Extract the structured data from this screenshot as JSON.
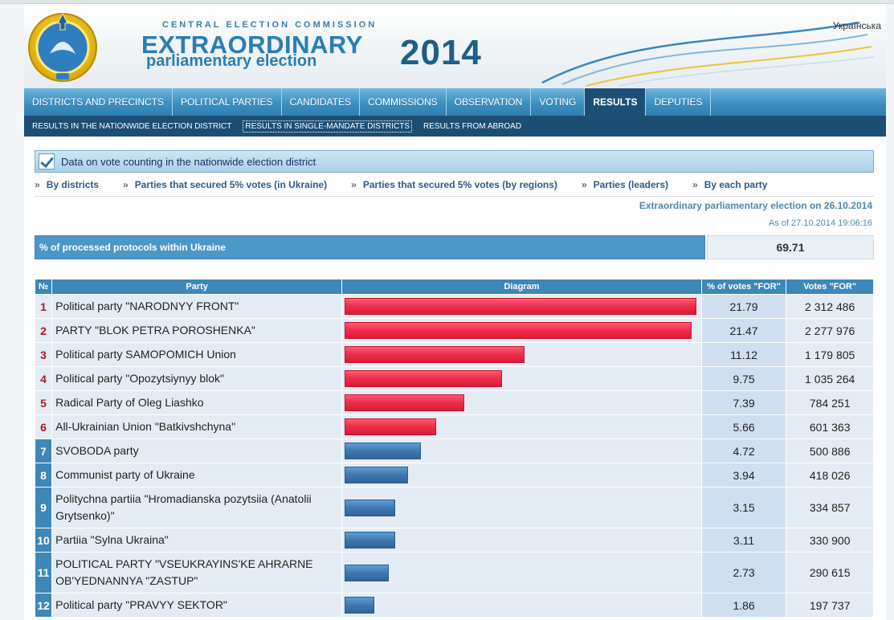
{
  "header": {
    "commission": "CENTRAL ELECTION COMMISSION",
    "title_line1": "EXTRAORDINARY",
    "title_line2": "parliamentary election",
    "year": "2014",
    "language_link": "Українська"
  },
  "main_nav": [
    {
      "label": "DISTRICTS AND PRECINCTS",
      "active": false
    },
    {
      "label": "POLITICAL PARTIES",
      "active": false
    },
    {
      "label": "CANDIDATES",
      "active": false
    },
    {
      "label": "COMMISSIONS",
      "active": false
    },
    {
      "label": "OBSERVATION",
      "active": false
    },
    {
      "label": "VOTING",
      "active": false
    },
    {
      "label": "RESULTS",
      "active": true
    },
    {
      "label": "DEPUTIES",
      "active": false
    }
  ],
  "sub_nav": [
    {
      "label": "RESULTS IN THE NATIONWIDE ELECTION DISTRICT",
      "active": false
    },
    {
      "label": "RESULTS IN SINGLE-MANDATE DISTRICTS",
      "active": true
    },
    {
      "label": "RESULTS FROM ABROAD",
      "active": false
    }
  ],
  "section": {
    "title": "Data on vote counting in the nationwide election district"
  },
  "links": [
    {
      "label": "By districts"
    },
    {
      "label": "Parties that secured 5% votes (in Ukraine)"
    },
    {
      "label": "Parties that secured 5% votes (by regions)"
    },
    {
      "label": "Parties (leaders)"
    },
    {
      "label": "By each party"
    }
  ],
  "link_marker": "»",
  "election_line": "Extraordinary parliamentary election on 26.10.2014",
  "as_of": "As of 27.10.2014 19:06:16",
  "processed": {
    "label": "% of processed protocols within Ukraine",
    "value": "69.71"
  },
  "table": {
    "headers": [
      "№",
      "Party",
      "Diagram",
      "% of votes \"FOR\"",
      "Votes \"FOR\""
    ],
    "rows": [
      {
        "no": "1",
        "party": "Political party \"NARODNYY FRONT\"",
        "pct": "21.79",
        "votes": "2 312 486",
        "threshold": true
      },
      {
        "no": "2",
        "party": "PARTY \"BLOK PETRA POROSHENKA\"",
        "pct": "21.47",
        "votes": "2 277 976",
        "threshold": true
      },
      {
        "no": "3",
        "party": "Political party SAMOPOMICH Union",
        "pct": "11.12",
        "votes": "1 179 805",
        "threshold": true
      },
      {
        "no": "4",
        "party": "Political party \"Opozytsiynyy blok\"",
        "pct": "9.75",
        "votes": "1 035 264",
        "threshold": true
      },
      {
        "no": "5",
        "party": "Radical Party of Oleg Liashko",
        "pct": "7.39",
        "votes": "784 251",
        "threshold": true
      },
      {
        "no": "6",
        "party": "All-Ukrainian Union \"Batkivshchyna\"",
        "pct": "5.66",
        "votes": "601 363",
        "threshold": true
      },
      {
        "no": "7",
        "party": "SVOBODA party",
        "pct": "4.72",
        "votes": "500 886",
        "threshold": false
      },
      {
        "no": "8",
        "party": "Communist party of Ukraine",
        "pct": "3.94",
        "votes": "418 026",
        "threshold": false
      },
      {
        "no": "9",
        "party": "Politychna partiia \"Hromadianska pozytsiia (Anatolii Grytsenko)\"",
        "pct": "3.15",
        "votes": "334 857",
        "threshold": false
      },
      {
        "no": "10",
        "party": "Partiia \"Sylna Ukraina\"",
        "pct": "3.11",
        "votes": "330 900",
        "threshold": false
      },
      {
        "no": "11",
        "party": "POLITICAL PARTY \"VSEUKRAYINS'KE AHRARNE OB'YEDNANNYA \"ZASTUP\"",
        "pct": "2.73",
        "votes": "290 615",
        "threshold": false
      },
      {
        "no": "12",
        "party": "Political party \"PRAVYY SEKTOR\"",
        "pct": "1.86",
        "votes": "197 737",
        "threshold": false
      }
    ]
  },
  "colors": {
    "bar_above_threshold": "#ee2d4b",
    "bar_below_threshold": "#3f78b0",
    "nav_active": "#1d4f76"
  }
}
